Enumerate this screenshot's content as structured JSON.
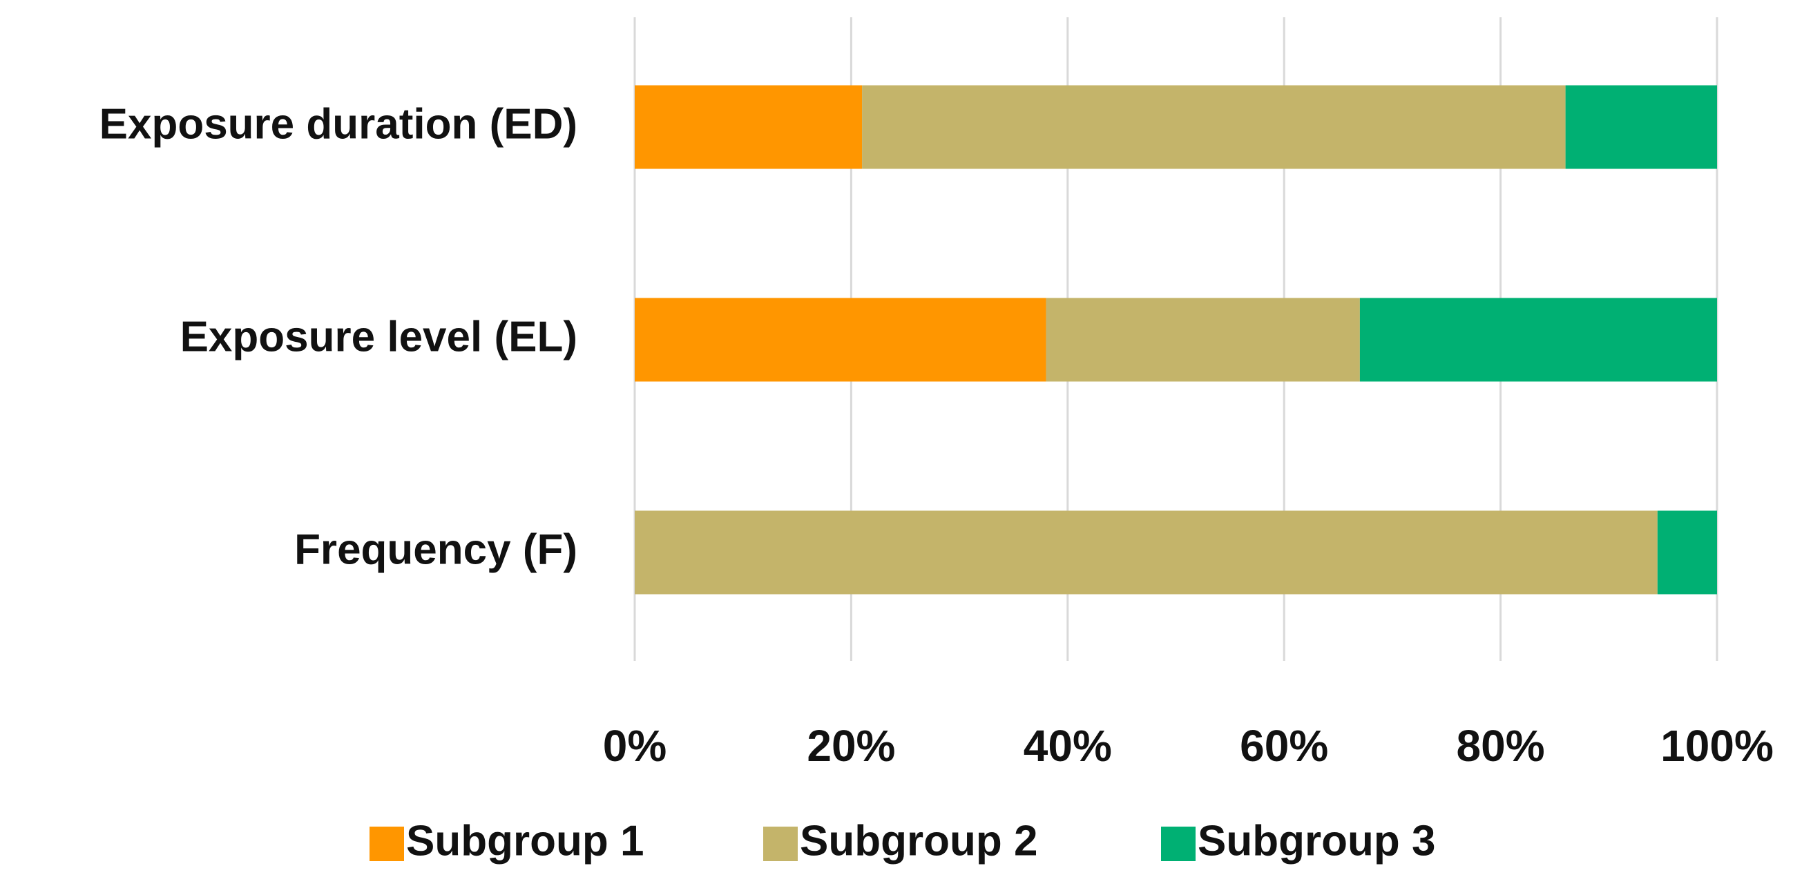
{
  "chart_data": {
    "type": "bar",
    "orientation": "horizontal",
    "stacked": true,
    "categories": [
      "Exposure duration (ED)",
      "Exposure level (EL)",
      "Frequency (F)"
    ],
    "series": [
      {
        "name": "Subgroup 1",
        "color": "#ff9600",
        "values": [
          21,
          38,
          0
        ]
      },
      {
        "name": "Subgroup 2",
        "color": "#c4b46a",
        "values": [
          65,
          29,
          94.5
        ]
      },
      {
        "name": "Subgroup 3",
        "color": "#00b073",
        "values": [
          14,
          33,
          5.5
        ]
      }
    ],
    "xlim": [
      0,
      100
    ],
    "xticks": [
      {
        "value": 0,
        "label": "0%"
      },
      {
        "value": 20,
        "label": "20%"
      },
      {
        "value": 40,
        "label": "40%"
      },
      {
        "value": 60,
        "label": "60%"
      },
      {
        "value": 80,
        "label": "80%"
      },
      {
        "value": 100,
        "label": "100%"
      }
    ],
    "grid": true,
    "legend": "bottom"
  }
}
